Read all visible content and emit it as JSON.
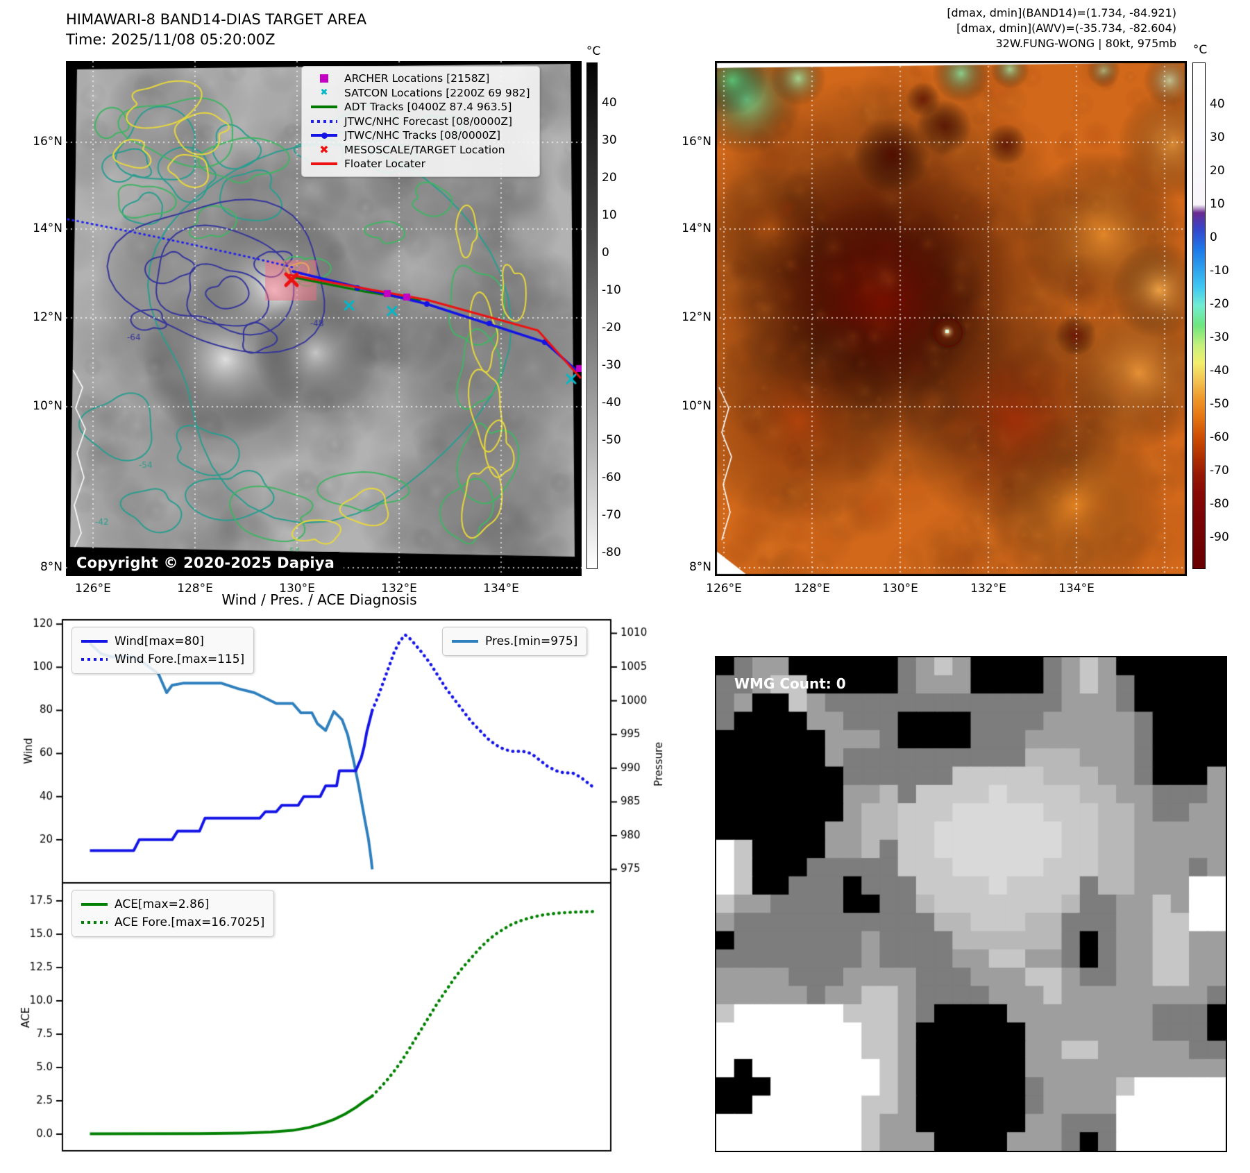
{
  "header": {
    "title": "HIMAWARI-8 BAND14-DIAS TARGET AREA",
    "time_line": "Time: 2025/11/08 05:20:00Z",
    "right_lines": [
      "[dmax, dmin](BAND14)=(1.734, -84.921)",
      "[dmax, dmin](AWV)=(-35.734, -82.604)",
      "32W.FUNG-WONG | 80kt, 975mb"
    ]
  },
  "map_band14": {
    "copyright": "Copyright © 2020-2025 Dapiya",
    "lat_ticks": [
      "16°N",
      "14°N",
      "12°N",
      "10°N",
      "8°N"
    ],
    "lon_ticks": [
      "126°E",
      "128°E",
      "130°E",
      "132°E",
      "134°E"
    ],
    "colorbar": {
      "unit": "°C",
      "ticks": [
        40,
        30,
        20,
        10,
        0,
        -10,
        -20,
        -30,
        -40,
        -50,
        -60,
        -70,
        -80
      ]
    },
    "contour_labels": [
      {
        "text": "-64",
        "color": "#35359b"
      },
      {
        "text": "-48",
        "color": "#35359b"
      },
      {
        "text": "-54",
        "color": "#2a9d8f"
      },
      {
        "text": "54",
        "color": "#41b464"
      },
      {
        "text": "-42",
        "color": "#2a9d8f"
      }
    ],
    "legend": [
      {
        "label": "ARCHER Locations [2158Z]",
        "marker": "square",
        "color": "#c400c4"
      },
      {
        "label": "SATCON Locations [2200Z 69 982]",
        "marker": "x",
        "color": "#00b8c8"
      },
      {
        "label": "ADT Tracks [0400Z 87.4 963.5]",
        "marker": "line",
        "color": "#007800"
      },
      {
        "label": "JTWC/NHC Forecast [08/0000Z]",
        "marker": "dotted",
        "color": "#2222ee"
      },
      {
        "label": "JTWC/NHC Tracks [08/0000Z]",
        "marker": "linedot",
        "color": "#1414e6"
      },
      {
        "label": "MESOSCALE/TARGET Location",
        "marker": "X",
        "color": "#ee1111"
      },
      {
        "label": "Floater Locater",
        "marker": "line",
        "color": "#ee1111"
      }
    ]
  },
  "map_awv": {
    "lat_ticks": [
      "16°N",
      "14°N",
      "12°N",
      "10°N",
      "8°N"
    ],
    "lon_ticks": [
      "126°E",
      "128°E",
      "130°E",
      "132°E",
      "134°E"
    ],
    "colorbar": {
      "unit": "°C",
      "ticks": [
        40,
        30,
        20,
        10,
        0,
        -10,
        -20,
        -30,
        -40,
        -50,
        -60,
        -70,
        -80,
        -90
      ]
    }
  },
  "wmg": {
    "count_label": "WMG Count: 0"
  },
  "chart_data": [
    {
      "type": "line",
      "title": "Wind / Pres. / ACE Diagnosis",
      "xlabel": "",
      "x_range": [
        0,
        100
      ],
      "grid": false,
      "left_axis": {
        "label": "Wind",
        "ticks": [
          20,
          40,
          60,
          80,
          100,
          120
        ],
        "range": [
          0,
          122
        ]
      },
      "right_axis": {
        "label": "Pressure",
        "ticks": [
          975,
          980,
          985,
          990,
          995,
          1000,
          1005,
          1010
        ],
        "range": [
          973,
          1012
        ]
      },
      "series": [
        {
          "name": "Wind[max=80]",
          "axis": "left",
          "style": "solid",
          "color": "#1414e6",
          "points": [
            [
              5,
              15
            ],
            [
              13,
              15
            ],
            [
              14,
              20
            ],
            [
              20,
              20
            ],
            [
              21,
              24
            ],
            [
              25,
              24
            ],
            [
              26,
              30
            ],
            [
              36,
              30
            ],
            [
              37,
              33
            ],
            [
              39,
              33
            ],
            [
              40,
              36
            ],
            [
              43,
              36
            ],
            [
              44,
              40
            ],
            [
              47,
              40
            ],
            [
              48,
              45
            ],
            [
              50,
              45
            ],
            [
              50.5,
              52
            ],
            [
              53.5,
              52
            ],
            [
              54.5,
              58
            ],
            [
              55,
              63
            ],
            [
              55.5,
              70
            ],
            [
              56,
              75
            ],
            [
              56.5,
              80
            ]
          ]
        },
        {
          "name": "Wind Fore.[max=115]",
          "axis": "left",
          "style": "dotted",
          "color": "#1414e6",
          "points": [
            [
              56.5,
              80
            ],
            [
              57.5,
              86
            ],
            [
              58.5,
              93
            ],
            [
              59.5,
              100
            ],
            [
              60.5,
              107
            ],
            [
              61.5,
              112
            ],
            [
              62.5,
              115
            ],
            [
              63.5,
              113
            ],
            [
              64.5,
              110
            ],
            [
              65.5,
              107
            ],
            [
              67,
              102
            ],
            [
              68.5,
              96
            ],
            [
              70,
              90
            ],
            [
              71.5,
              85
            ],
            [
              73,
              80
            ],
            [
              74.5,
              75
            ],
            [
              76,
              71
            ],
            [
              77.5,
              67
            ],
            [
              79,
              64
            ],
            [
              80.5,
              62
            ],
            [
              82,
              61
            ],
            [
              84,
              61
            ],
            [
              85.5,
              60
            ],
            [
              87,
              57
            ],
            [
              88.5,
              54
            ],
            [
              90,
              52
            ],
            [
              91.5,
              51
            ],
            [
              93,
              51
            ],
            [
              94.5,
              49
            ],
            [
              96,
              46
            ],
            [
              97,
              44
            ]
          ]
        },
        {
          "name": "Pres.[min=975]",
          "axis": "right",
          "style": "solid",
          "color": "#2e7fbd",
          "points": [
            [
              5,
              1008.5
            ],
            [
              7,
              1007
            ],
            [
              9,
              1006.5
            ],
            [
              13,
              1006.5
            ],
            [
              15,
              1005.5
            ],
            [
              17.5,
              1004
            ],
            [
              19,
              1001.2
            ],
            [
              20,
              1002.3
            ],
            [
              22,
              1002.6
            ],
            [
              29,
              1002.6
            ],
            [
              32,
              1001.8
            ],
            [
              35,
              1001.2
            ],
            [
              37,
              1000.4
            ],
            [
              39,
              999.6
            ],
            [
              42,
              999.6
            ],
            [
              43.5,
              998.2
            ],
            [
              45.5,
              998.2
            ],
            [
              46.5,
              996.6
            ],
            [
              48,
              995.6
            ],
            [
              49.5,
              998.4
            ],
            [
              51,
              997.2
            ],
            [
              52,
              995
            ],
            [
              53,
              991.5
            ],
            [
              54,
              987.5
            ],
            [
              55,
              983
            ],
            [
              55.8,
              979.5
            ],
            [
              56.3,
              976.5
            ],
            [
              56.5,
              975
            ]
          ]
        }
      ]
    },
    {
      "type": "line",
      "title": "",
      "xlabel": "",
      "x_range": [
        0,
        100
      ],
      "grid": false,
      "left_axis": {
        "label": "ACE",
        "ticks": [
          "0.0",
          "2.5",
          "5.0",
          "7.5",
          "10.0",
          "12.5",
          "15.0",
          "17.5"
        ],
        "range": [
          -1.25,
          18.85
        ]
      },
      "series": [
        {
          "name": "ACE[max=2.86]",
          "axis": "left",
          "style": "solid",
          "color": "#008000",
          "points": [
            [
              5,
              0.02
            ],
            [
              25,
              0.04
            ],
            [
              33,
              0.08
            ],
            [
              38,
              0.15
            ],
            [
              42,
              0.28
            ],
            [
              45,
              0.5
            ],
            [
              47.5,
              0.8
            ],
            [
              49.5,
              1.1
            ],
            [
              51.5,
              1.5
            ],
            [
              53.5,
              2.0
            ],
            [
              55,
              2.45
            ],
            [
              56.5,
              2.86
            ]
          ]
        },
        {
          "name": "ACE Fore.[max=16.7025]",
          "axis": "left",
          "style": "dotted",
          "color": "#008000",
          "points": [
            [
              56.5,
              2.86
            ],
            [
              58,
              3.5
            ],
            [
              59.5,
              4.2
            ],
            [
              61,
              5.0
            ],
            [
              62.5,
              5.9
            ],
            [
              64,
              6.9
            ],
            [
              65.5,
              7.9
            ],
            [
              67,
              8.9
            ],
            [
              68.5,
              9.9
            ],
            [
              70,
              10.8
            ],
            [
              71.5,
              11.7
            ],
            [
              73,
              12.5
            ],
            [
              74.5,
              13.2
            ],
            [
              76,
              13.9
            ],
            [
              77.5,
              14.5
            ],
            [
              79,
              15.0
            ],
            [
              80.5,
              15.4
            ],
            [
              82,
              15.75
            ],
            [
              83.5,
              16.0
            ],
            [
              85,
              16.2
            ],
            [
              87,
              16.4
            ],
            [
              89,
              16.52
            ],
            [
              91,
              16.6
            ],
            [
              93.5,
              16.66
            ],
            [
              97,
              16.7
            ]
          ]
        }
      ]
    }
  ]
}
